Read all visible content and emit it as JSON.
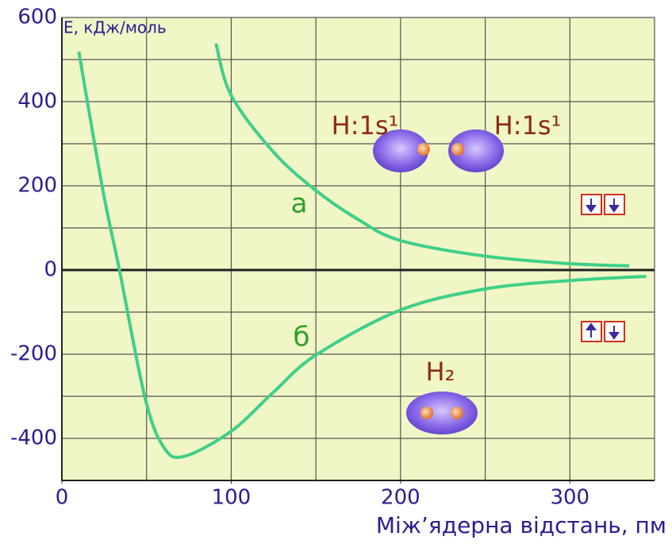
{
  "chart_data": {
    "type": "line",
    "y_label": "Е, кДж/моль",
    "x_label": "Між’ядерна відстань, пм",
    "xlim": [
      0,
      350
    ],
    "ylim": [
      -500,
      600
    ],
    "xticks": [
      0,
      100,
      200,
      300
    ],
    "yticks": [
      -400,
      -200,
      0,
      200,
      400,
      600
    ],
    "xgrid": [
      50,
      100,
      150,
      200,
      250,
      300,
      350
    ],
    "ygrid": [
      -400,
      -300,
      -200,
      -100,
      100,
      200,
      300,
      400,
      500,
      600
    ],
    "grid": true,
    "series": [
      {
        "name": "а",
        "color": "#3fcf8a",
        "x": [
          91,
          100,
          125,
          150,
          175,
          200,
          250,
          300,
          335
        ],
        "values": [
          538,
          415,
          280,
          189,
          120,
          70,
          33,
          15,
          10
        ]
      },
      {
        "name": "б",
        "color": "#3fcf8a",
        "x": [
          10,
          24,
          34,
          49,
          60,
          72,
          100,
          125,
          150,
          200,
          250,
          300,
          345
        ],
        "values": [
          519,
          194,
          0,
          -302,
          -420,
          -443,
          -383,
          -290,
          -202,
          -95,
          -45,
          -25,
          -15
        ]
      }
    ],
    "annotations": [
      "H:1s¹",
      "H:1s¹",
      "H₂"
    ]
  }
}
